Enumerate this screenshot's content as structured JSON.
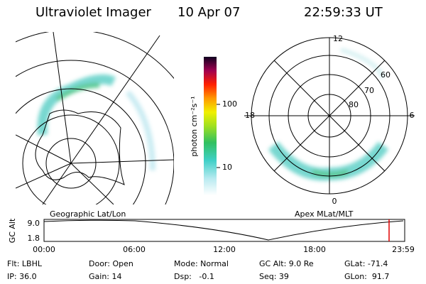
{
  "header": {
    "instrument": "Ultraviolet Imager",
    "date": "10 Apr 07",
    "time": "22:59:33 UT"
  },
  "colorbar": {
    "unit": "photon cm⁻²s⁻¹",
    "ticks": [
      "100",
      "10"
    ]
  },
  "left_panel": {
    "caption": "Geographic Lat/Lon"
  },
  "right_panel": {
    "caption": "Apex MLat/MLT",
    "mlt_labels": [
      "12",
      "18",
      "6",
      "0"
    ],
    "mlat_labels": [
      "80",
      "70",
      "60"
    ]
  },
  "altitude_plot": {
    "label": "GC Alt",
    "ylabels": [
      "9.0",
      "1.8"
    ],
    "xlabels": [
      "00:00",
      "06:00",
      "12:00",
      "18:00",
      "23:59"
    ]
  },
  "footer": {
    "rows": [
      [
        "Flt: LBHL",
        "Door: Open",
        "Mode: Normal",
        "GC Alt: 9.0 Re",
        "GLat: -71.4"
      ],
      [
        "IP: 36.0",
        "Gain: 14",
        "Dsp:   -0.1",
        "Seq: 39",
        "GLon:  91.7"
      ]
    ]
  }
}
